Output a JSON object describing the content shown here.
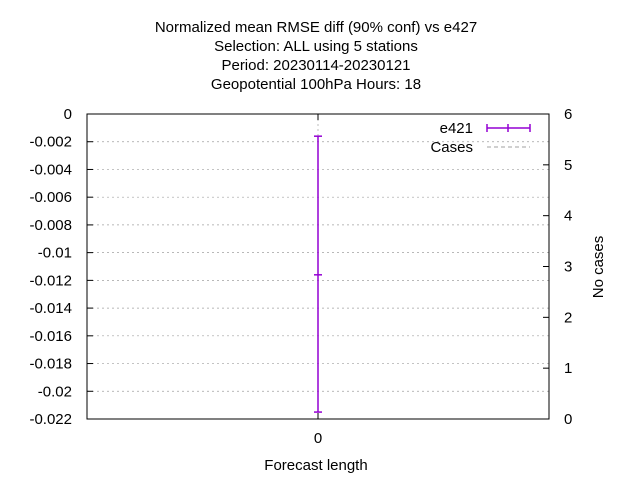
{
  "chart_data": {
    "type": "line",
    "title_lines": [
      "Normalized mean RMSE diff (90% conf) vs e427",
      "Selection: ALL using     5 stations",
      "Period: 20230114-20230121",
      "Geopotential 100hPa   Hours:  18"
    ],
    "xlabel": "Forecast length",
    "ylabel": "",
    "y2label": "No cases",
    "x_ticks": [
      "0"
    ],
    "y_ticks": [
      "0",
      "-0.002",
      "-0.004",
      "-0.006",
      "-0.008",
      "-0.01",
      "-0.012",
      "-0.014",
      "-0.016",
      "-0.018",
      "-0.02",
      "-0.022"
    ],
    "y2_ticks": [
      "0",
      "1",
      "2",
      "3",
      "4",
      "5",
      "6"
    ],
    "ylim": [
      -0.022,
      0
    ],
    "y2lim": [
      0,
      6
    ],
    "x": [
      0
    ],
    "grid": true,
    "legend_position": "top-right",
    "series": [
      {
        "name": "e421",
        "color": "#9400d3",
        "style": "errorbar",
        "values": [
          -0.0116
        ],
        "lower": [
          -0.0215
        ],
        "upper": [
          -0.0016
        ]
      },
      {
        "name": "Cases",
        "color": "#a0a0a0",
        "style": "dashed",
        "axis": "y2",
        "values": [
          6
        ]
      }
    ]
  }
}
